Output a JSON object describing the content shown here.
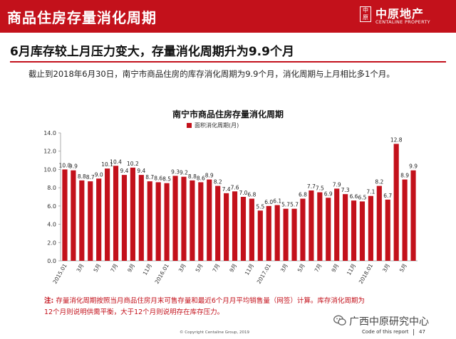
{
  "header": {
    "title": "商品住房存量消化周期",
    "logo_seal": "中原",
    "logo_cn": "中原地产",
    "logo_en": "CENTALINE PROPERTY",
    "bar_color": "#c3111b"
  },
  "headline": "6月库存较上月压力变大，存量消化周期升为9.9个月",
  "summary": "截止到2018年6月30日，南宁市商品住房的库存消化周期为9.9个月，消化周期与上月相比多1个月。",
  "chart_data": {
    "type": "bar",
    "title": "南宁市商品住房存量消化周期",
    "legend": "面积消化周期(月)",
    "bar_color": "#c3111b",
    "ylim": [
      0,
      14
    ],
    "yticks": [
      "0.0",
      "2.0",
      "4.0",
      "6.0",
      "8.0",
      "10.0",
      "12.0",
      "14.0"
    ],
    "values": [
      10.0,
      9.9,
      8.8,
      8.7,
      9.0,
      10.1,
      10.4,
      9.4,
      10.2,
      9.4,
      8.7,
      8.6,
      8.5,
      9.3,
      9.2,
      8.8,
      8.6,
      8.9,
      8.2,
      7.4,
      7.6,
      7.0,
      6.8,
      5.5,
      6.0,
      6.1,
      5.7,
      5.7,
      6.8,
      7.7,
      7.5,
      6.9,
      7.9,
      7.3,
      6.6,
      6.5,
      7.1,
      8.2,
      6.7,
      12.8,
      8.9,
      9.9
    ],
    "value_labels": [
      "10.0",
      "9.9",
      "8.8",
      "8.7",
      "9.0",
      "10.1",
      "10.4",
      "9.4",
      "10.2",
      "9.4",
      "8.7",
      "8.6",
      "8.5",
      "9.3",
      "9.2",
      "8.8",
      "8.6",
      "8.9",
      "8.2",
      "7.4",
      "7.6",
      "7.0",
      "6.8",
      "5.5",
      "6.0",
      "6.1",
      "5.7",
      "5.7",
      "6.8",
      "7.7",
      "7.5",
      "6.9",
      "7.9",
      "7.3",
      "6.6",
      "6.5",
      "7.1",
      "8.2",
      "6.7",
      "12.8",
      "8.9",
      "9.9"
    ],
    "x_tick_labels": [
      {
        "index": 0,
        "label": "2015.01"
      },
      {
        "index": 2,
        "label": "3月"
      },
      {
        "index": 4,
        "label": "5月"
      },
      {
        "index": 6,
        "label": "7月"
      },
      {
        "index": 8,
        "label": "9月"
      },
      {
        "index": 10,
        "label": "11月"
      },
      {
        "index": 12,
        "label": "2016.01"
      },
      {
        "index": 14,
        "label": "3月"
      },
      {
        "index": 16,
        "label": "5月"
      },
      {
        "index": 18,
        "label": "7月"
      },
      {
        "index": 20,
        "label": "9月"
      },
      {
        "index": 22,
        "label": "11月"
      },
      {
        "index": 24,
        "label": "2017.01"
      },
      {
        "index": 26,
        "label": "3月"
      },
      {
        "index": 28,
        "label": "5月"
      },
      {
        "index": 30,
        "label": "7月"
      },
      {
        "index": 32,
        "label": "9月"
      },
      {
        "index": 34,
        "label": "11月"
      },
      {
        "index": 36,
        "label": "2018.01"
      },
      {
        "index": 38,
        "label": "3月"
      },
      {
        "index": 40,
        "label": "5月"
      }
    ]
  },
  "note": {
    "prefix": "注:",
    "line1": "存量消化周期按照当月商品住房月末可售存量和最近6个月月平均销售量（网签）计算。库存消化周期为",
    "line2": "12个月则说明供需平衡，大于12个月则说明存在库存压力。",
    "color": "#c3111b"
  },
  "footer": {
    "wechat_name": "广西中原研究中心",
    "copyright": "© Copyright Centaline Group, 2019",
    "code_label": "Code of this report",
    "page_number": "47"
  }
}
